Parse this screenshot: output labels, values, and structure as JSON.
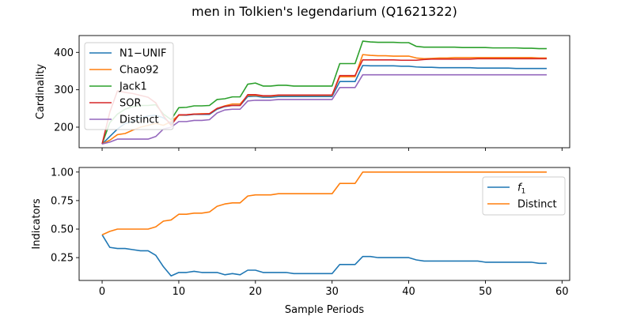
{
  "figure": {
    "title": "men in Tolkien's legendarium (Q1621322)",
    "xlabel": "Sample Periods"
  },
  "chart_data": [
    {
      "type": "line",
      "ylabel": "Cardinality",
      "xlim": [
        -3,
        61
      ],
      "ylim": [
        145,
        445
      ],
      "xticks": [
        0,
        10,
        20,
        30,
        40,
        50,
        60
      ],
      "yticks": [
        200,
        300,
        400
      ],
      "legend": "upper-left",
      "series": [
        {
          "name": "N1−UNIF",
          "color": "#1f77b4",
          "x": [
            0,
            1,
            2,
            3,
            4,
            5,
            6,
            7,
            8,
            9,
            10,
            11,
            12,
            13,
            14,
            15,
            16,
            17,
            18,
            19,
            20,
            21,
            22,
            23,
            24,
            25,
            26,
            27,
            28,
            29,
            30,
            31,
            32,
            33,
            34,
            35,
            36,
            37,
            38,
            39,
            40,
            41,
            42,
            43,
            44,
            45,
            46,
            47,
            48,
            49,
            50,
            51,
            52,
            53,
            54,
            55,
            56,
            57,
            58
          ],
          "values": [
            155,
            175,
            195,
            210,
            215,
            225,
            230,
            232,
            225,
            210,
            232,
            232,
            234,
            234,
            234,
            248,
            255,
            258,
            258,
            282,
            283,
            280,
            280,
            282,
            282,
            282,
            282,
            282,
            282,
            282,
            282,
            322,
            322,
            322,
            365,
            364,
            364,
            364,
            364,
            363,
            363,
            361,
            360,
            360,
            359,
            359,
            359,
            359,
            359,
            358,
            358,
            358,
            358,
            358,
            357,
            357,
            357,
            357,
            357
          ]
        },
        {
          "name": "Chao92",
          "color": "#ff7f0e",
          "x": [
            0,
            1,
            2,
            3,
            4,
            5,
            6,
            7,
            8,
            9,
            10,
            11,
            12,
            13,
            14,
            15,
            16,
            17,
            18,
            19,
            20,
            21,
            22,
            23,
            24,
            25,
            26,
            27,
            28,
            29,
            30,
            31,
            32,
            33,
            34,
            35,
            36,
            37,
            38,
            39,
            40,
            41,
            42,
            43,
            44,
            45,
            46,
            47,
            48,
            49,
            50,
            51,
            52,
            53,
            54,
            55,
            56,
            57,
            58
          ],
          "values": [
            155,
            165,
            180,
            183,
            192,
            200,
            205,
            210,
            205,
            215,
            232,
            233,
            235,
            236,
            236,
            250,
            257,
            262,
            262,
            285,
            285,
            283,
            283,
            285,
            285,
            285,
            285,
            285,
            285,
            285,
            285,
            335,
            335,
            335,
            394,
            392,
            391,
            391,
            390,
            390,
            390,
            385,
            383,
            384,
            385,
            385,
            386,
            386,
            386,
            386,
            386,
            386,
            386,
            386,
            386,
            386,
            386,
            385,
            385
          ]
        },
        {
          "name": "Jack1",
          "color": "#2ca02c",
          "x": [
            0,
            1,
            2,
            3,
            4,
            5,
            6,
            7,
            8,
            9,
            10,
            11,
            12,
            13,
            14,
            15,
            16,
            17,
            18,
            19,
            20,
            21,
            22,
            23,
            24,
            25,
            26,
            27,
            28,
            29,
            30,
            31,
            32,
            33,
            34,
            35,
            36,
            37,
            38,
            39,
            40,
            41,
            42,
            43,
            44,
            45,
            46,
            47,
            48,
            49,
            50,
            51,
            52,
            53,
            54,
            55,
            56,
            57,
            58
          ],
          "values": [
            155,
            212,
            235,
            248,
            255,
            258,
            258,
            260,
            235,
            220,
            252,
            253,
            257,
            257,
            258,
            274,
            276,
            281,
            281,
            315,
            318,
            310,
            310,
            312,
            312,
            310,
            310,
            310,
            310,
            310,
            310,
            370,
            370,
            370,
            430,
            428,
            427,
            427,
            427,
            426,
            426,
            416,
            414,
            414,
            414,
            414,
            414,
            413,
            413,
            413,
            413,
            412,
            412,
            412,
            412,
            411,
            411,
            410,
            410
          ]
        },
        {
          "name": "SOR",
          "color": "#d62728",
          "x": [
            0,
            1,
            2,
            3,
            4,
            5,
            6,
            7,
            8,
            9,
            10,
            11,
            12,
            13,
            14,
            15,
            16,
            17,
            18,
            19,
            20,
            21,
            22,
            23,
            24,
            25,
            26,
            27,
            28,
            29,
            30,
            31,
            32,
            33,
            34,
            35,
            36,
            37,
            38,
            39,
            40,
            41,
            42,
            43,
            44,
            45,
            46,
            47,
            48,
            49,
            50,
            51,
            52,
            53,
            54,
            55,
            56,
            57,
            58
          ],
          "values": [
            155,
            240,
            297,
            293,
            290,
            285,
            280,
            265,
            230,
            205,
            233,
            233,
            235,
            235,
            236,
            250,
            256,
            258,
            258,
            287,
            287,
            284,
            284,
            286,
            286,
            286,
            286,
            286,
            286,
            286,
            286,
            338,
            338,
            338,
            380,
            380,
            380,
            380,
            380,
            379,
            379,
            379,
            381,
            382,
            382,
            382,
            382,
            382,
            382,
            383,
            383,
            383,
            383,
            383,
            383,
            383,
            383,
            383,
            383
          ]
        },
        {
          "name": "Distinct",
          "color": "#9467bd",
          "x": [
            0,
            1,
            2,
            3,
            4,
            5,
            6,
            7,
            8,
            9,
            10,
            11,
            12,
            13,
            14,
            15,
            16,
            17,
            18,
            19,
            20,
            21,
            22,
            23,
            24,
            25,
            26,
            27,
            28,
            29,
            30,
            31,
            32,
            33,
            34,
            35,
            36,
            37,
            38,
            39,
            40,
            41,
            42,
            43,
            44,
            45,
            46,
            47,
            48,
            49,
            50,
            51,
            52,
            53,
            54,
            55,
            56,
            57,
            58
          ],
          "values": [
            155,
            160,
            168,
            168,
            168,
            168,
            168,
            175,
            195,
            200,
            215,
            215,
            218,
            218,
            220,
            238,
            246,
            248,
            248,
            270,
            272,
            272,
            272,
            274,
            274,
            274,
            274,
            274,
            274,
            274,
            274,
            306,
            306,
            306,
            340,
            340,
            340,
            340,
            340,
            340,
            340,
            340,
            340,
            340,
            340,
            340,
            340,
            340,
            340,
            340,
            340,
            340,
            340,
            340,
            340,
            340,
            340,
            340,
            340
          ]
        }
      ]
    },
    {
      "type": "line",
      "ylabel": "Indicators",
      "xlim": [
        -3,
        61
      ],
      "ylim": [
        0.05,
        1.04
      ],
      "xticks": [
        0,
        10,
        20,
        30,
        40,
        50,
        60
      ],
      "xticklabels": [
        "0",
        "10",
        "20",
        "30",
        "40",
        "50",
        "60"
      ],
      "yticks": [
        0.25,
        0.5,
        0.75,
        1.0
      ],
      "yticklabels": [
        "0.25",
        "0.50",
        "0.75",
        "1.00"
      ],
      "legend": "upper-right",
      "series": [
        {
          "name": "f",
          "subscript": "1",
          "color": "#1f77b4",
          "x": [
            0,
            1,
            2,
            3,
            4,
            5,
            6,
            7,
            8,
            9,
            10,
            11,
            12,
            13,
            14,
            15,
            16,
            17,
            18,
            19,
            20,
            21,
            22,
            23,
            24,
            25,
            26,
            27,
            28,
            29,
            30,
            31,
            32,
            33,
            34,
            35,
            36,
            37,
            38,
            39,
            40,
            41,
            42,
            43,
            44,
            45,
            46,
            47,
            48,
            49,
            50,
            51,
            52,
            53,
            54,
            55,
            56,
            57,
            58
          ],
          "values": [
            0.45,
            0.34,
            0.33,
            0.33,
            0.32,
            0.31,
            0.31,
            0.27,
            0.17,
            0.09,
            0.12,
            0.12,
            0.13,
            0.12,
            0.12,
            0.12,
            0.1,
            0.11,
            0.1,
            0.14,
            0.14,
            0.12,
            0.12,
            0.12,
            0.12,
            0.11,
            0.11,
            0.11,
            0.11,
            0.11,
            0.11,
            0.19,
            0.19,
            0.19,
            0.26,
            0.26,
            0.25,
            0.25,
            0.25,
            0.25,
            0.25,
            0.23,
            0.22,
            0.22,
            0.22,
            0.22,
            0.22,
            0.22,
            0.22,
            0.22,
            0.21,
            0.21,
            0.21,
            0.21,
            0.21,
            0.21,
            0.21,
            0.2,
            0.2
          ]
        },
        {
          "name": "Distinct",
          "color": "#ff7f0e",
          "x": [
            0,
            1,
            2,
            3,
            4,
            5,
            6,
            7,
            8,
            9,
            10,
            11,
            12,
            13,
            14,
            15,
            16,
            17,
            18,
            19,
            20,
            21,
            22,
            23,
            24,
            25,
            26,
            27,
            28,
            29,
            30,
            31,
            32,
            33,
            34,
            35,
            36,
            37,
            38,
            39,
            40,
            41,
            42,
            43,
            44,
            45,
            46,
            47,
            48,
            49,
            50,
            51,
            52,
            53,
            54,
            55,
            56,
            57,
            58
          ],
          "values": [
            0.45,
            0.48,
            0.5,
            0.5,
            0.5,
            0.5,
            0.5,
            0.52,
            0.57,
            0.58,
            0.63,
            0.63,
            0.64,
            0.64,
            0.65,
            0.7,
            0.72,
            0.73,
            0.73,
            0.79,
            0.8,
            0.8,
            0.8,
            0.81,
            0.81,
            0.81,
            0.81,
            0.81,
            0.81,
            0.81,
            0.81,
            0.9,
            0.9,
            0.9,
            1.0,
            1.0,
            1.0,
            1.0,
            1.0,
            1.0,
            1.0,
            1.0,
            1.0,
            1.0,
            1.0,
            1.0,
            1.0,
            1.0,
            1.0,
            1.0,
            1.0,
            1.0,
            1.0,
            1.0,
            1.0,
            1.0,
            1.0,
            1.0,
            1.0
          ]
        }
      ]
    }
  ]
}
